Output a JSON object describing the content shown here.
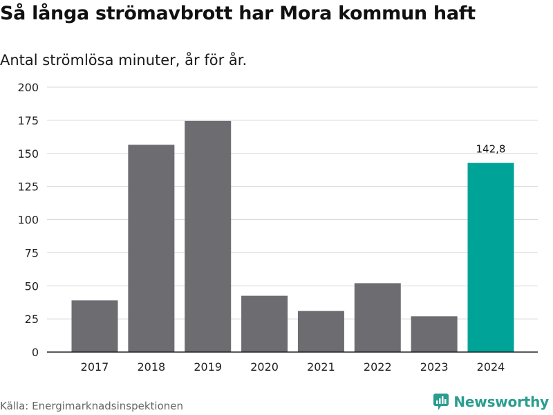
{
  "header": {
    "title": "Så långa strömavbrott har Mora kommun haft",
    "subtitle": "Antal strömlösa minuter, år för år."
  },
  "footer": {
    "source": "Källa: Energimarknadsinspektionen",
    "brand": "Newsworthy"
  },
  "colors": {
    "bar": "#6d6c71",
    "highlight": "#00a398",
    "grid": "#d9d9d9",
    "brand": "#2a9d8f"
  },
  "chart_data": {
    "type": "bar",
    "title": "Så långa strömavbrott har Mora kommun haft",
    "subtitle": "Antal strömlösa minuter, år för år.",
    "xlabel": "",
    "ylabel": "",
    "categories": [
      "2017",
      "2018",
      "2019",
      "2020",
      "2021",
      "2022",
      "2023",
      "2024"
    ],
    "values": [
      39,
      156.5,
      174.5,
      42.5,
      31,
      52,
      27,
      142.8
    ],
    "ylim": [
      0,
      200
    ],
    "yticks": [
      "0",
      "25",
      "50",
      "75",
      "100",
      "125",
      "150",
      "175",
      "200"
    ],
    "highlight_index": 7,
    "data_labels": [
      {
        "index": 7,
        "text": "142,8"
      }
    ],
    "grid": true
  }
}
